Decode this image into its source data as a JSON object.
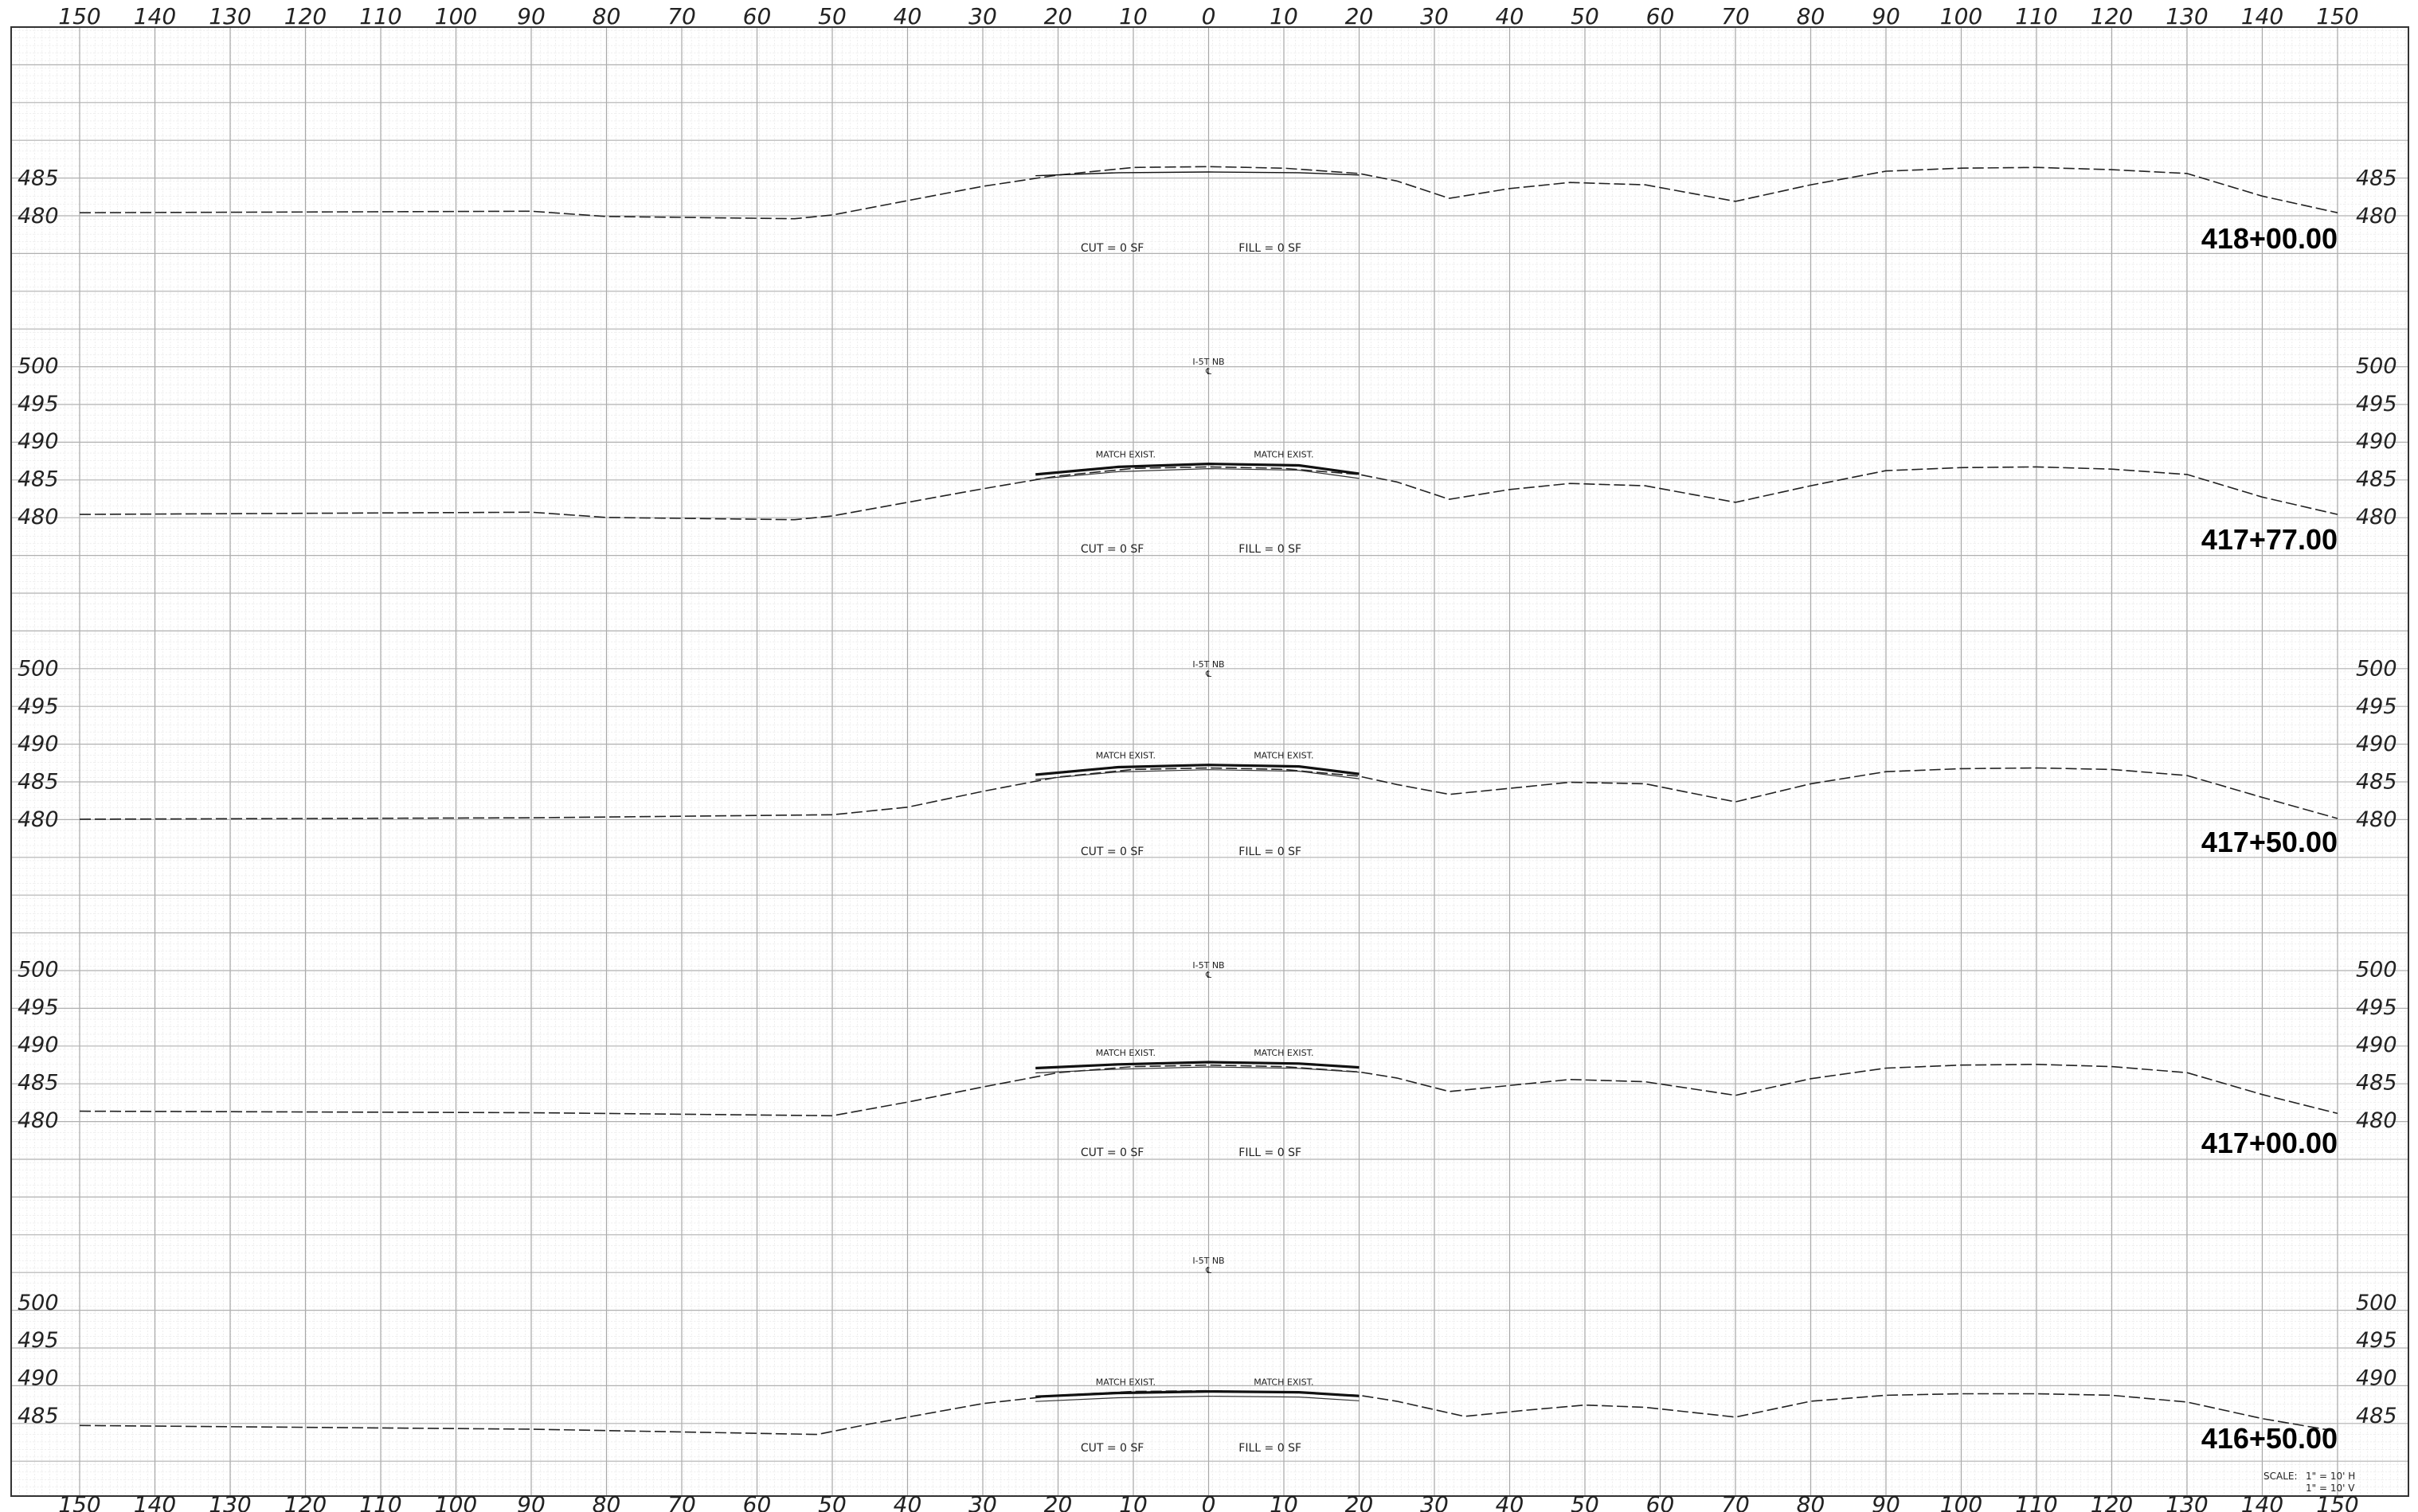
{
  "offset_ticks": [
    "150",
    "140",
    "130",
    "120",
    "110",
    "100",
    "90",
    "80",
    "70",
    "60",
    "50",
    "40",
    "30",
    "20",
    "10",
    "0",
    "10",
    "20",
    "30",
    "40",
    "50",
    "60",
    "70",
    "80",
    "90",
    "100",
    "110",
    "120",
    "130",
    "140",
    "150"
  ],
  "sections": [
    {
      "station": "418+00.00",
      "elevation_labels": [
        "485",
        "480"
      ],
      "cut_label": "CUT = 0 SF",
      "fill_label": "FILL = 0 SF",
      "centerline_label": "",
      "match_labels": [],
      "ground": [
        [
          -150,
          480.3
        ],
        [
          -90,
          480.5
        ],
        [
          -80,
          479.8
        ],
        [
          -55,
          479.5
        ],
        [
          -50,
          480
        ],
        [
          -30,
          483.8
        ],
        [
          -20,
          485.3
        ],
        [
          -10,
          486.3
        ],
        [
          0,
          486.4
        ],
        [
          10,
          486.2
        ],
        [
          20,
          485.5
        ],
        [
          25,
          484.5
        ],
        [
          32,
          482.2
        ],
        [
          40,
          483.5
        ],
        [
          48,
          484.3
        ],
        [
          58,
          484
        ],
        [
          70,
          481.8
        ],
        [
          80,
          484
        ],
        [
          90,
          485.8
        ],
        [
          100,
          486.2
        ],
        [
          110,
          486.3
        ],
        [
          120,
          486
        ],
        [
          130,
          485.5
        ],
        [
          140,
          482.5
        ],
        [
          150,
          480.3
        ]
      ],
      "proposed": [
        [
          -23,
          485.2
        ],
        [
          -12,
          485.6
        ],
        [
          0,
          485.7
        ],
        [
          12,
          485.6
        ],
        [
          20,
          485.3
        ]
      ]
    },
    {
      "station": "417+77.00",
      "elevation_labels": [
        "500",
        "495",
        "490",
        "485",
        "480"
      ],
      "cut_label": "CUT = 0 SF",
      "fill_label": "FILL = 0 SF",
      "centerline_label": "I-5T NB",
      "match_labels": [
        "MATCH EXIST.",
        "MATCH EXIST."
      ],
      "ground": [
        [
          -150,
          480.2
        ],
        [
          -90,
          480.5
        ],
        [
          -80,
          479.8
        ],
        [
          -55,
          479.5
        ],
        [
          -50,
          480
        ],
        [
          -30,
          483.6
        ],
        [
          -20,
          485.3
        ],
        [
          -10,
          486.3
        ],
        [
          0,
          486.5
        ],
        [
          10,
          486.3
        ],
        [
          20,
          485.5
        ],
        [
          25,
          484.5
        ],
        [
          32,
          482.2
        ],
        [
          40,
          483.5
        ],
        [
          48,
          484.3
        ],
        [
          58,
          484
        ],
        [
          70,
          481.8
        ],
        [
          80,
          484
        ],
        [
          90,
          486
        ],
        [
          100,
          486.4
        ],
        [
          110,
          486.5
        ],
        [
          120,
          486.2
        ],
        [
          130,
          485.5
        ],
        [
          140,
          482.5
        ],
        [
          150,
          480.2
        ]
      ],
      "proposed": [
        [
          -23,
          485.5
        ],
        [
          -12,
          486.5
        ],
        [
          0,
          486.9
        ],
        [
          12,
          486.7
        ],
        [
          20,
          485.6
        ]
      ]
    },
    {
      "station": "417+50.00",
      "elevation_labels": [
        "500",
        "495",
        "490",
        "485",
        "480"
      ],
      "cut_label": "CUT = 0 SF",
      "fill_label": "FILL = 0 SF",
      "centerline_label": "I-5T NB",
      "match_labels": [
        "MATCH EXIST.",
        "MATCH EXIST."
      ],
      "ground": [
        [
          -150,
          479.9
        ],
        [
          -90,
          480.1
        ],
        [
          -60,
          480.4
        ],
        [
          -50,
          480.5
        ],
        [
          -40,
          481.5
        ],
        [
          -30,
          483.6
        ],
        [
          -20,
          485.5
        ],
        [
          -10,
          486.5
        ],
        [
          0,
          486.7
        ],
        [
          10,
          486.5
        ],
        [
          20,
          485.6
        ],
        [
          25,
          484.5
        ],
        [
          32,
          483.2
        ],
        [
          40,
          484
        ],
        [
          48,
          484.8
        ],
        [
          58,
          484.6
        ],
        [
          70,
          482.2
        ],
        [
          80,
          484.6
        ],
        [
          90,
          486.2
        ],
        [
          100,
          486.6
        ],
        [
          110,
          486.7
        ],
        [
          120,
          486.5
        ],
        [
          130,
          485.7
        ],
        [
          140,
          482.8
        ],
        [
          150,
          480
        ]
      ],
      "proposed": [
        [
          -23,
          485.8
        ],
        [
          -12,
          486.8
        ],
        [
          0,
          487.1
        ],
        [
          12,
          486.9
        ],
        [
          20,
          485.9
        ]
      ]
    },
    {
      "station": "417+00.00",
      "elevation_labels": [
        "500",
        "495",
        "490",
        "485",
        "480"
      ],
      "cut_label": "CUT = 0 SF",
      "fill_label": "FILL = 0 SF",
      "centerline_label": "I-5T NB",
      "match_labels": [
        "MATCH EXIST.",
        "MATCH EXIST."
      ],
      "ground": [
        [
          -150,
          481.1
        ],
        [
          -90,
          480.9
        ],
        [
          -50,
          480.5
        ],
        [
          -40,
          482.3
        ],
        [
          -30,
          484.3
        ],
        [
          -20,
          486.2
        ],
        [
          -10,
          487
        ],
        [
          0,
          487.2
        ],
        [
          10,
          487
        ],
        [
          20,
          486.3
        ],
        [
          25,
          485.5
        ],
        [
          32,
          483.7
        ],
        [
          40,
          484.5
        ],
        [
          48,
          485.3
        ],
        [
          58,
          485
        ],
        [
          70,
          483.2
        ],
        [
          80,
          485.4
        ],
        [
          90,
          486.8
        ],
        [
          100,
          487.2
        ],
        [
          110,
          487.3
        ],
        [
          120,
          487
        ],
        [
          130,
          486.2
        ],
        [
          140,
          483.3
        ],
        [
          150,
          480.8
        ]
      ],
      "proposed": [
        [
          -23,
          486.8
        ],
        [
          -12,
          487.3
        ],
        [
          0,
          487.6
        ],
        [
          12,
          487.4
        ],
        [
          20,
          486.9
        ]
      ]
    },
    {
      "station": "416+50.00",
      "elevation_labels": [
        "500",
        "495",
        "490",
        "485"
      ],
      "cut_label": "CUT = 0 SF",
      "fill_label": "FILL = 0 SF",
      "centerline_label": "I-5T NB",
      "match_labels": [
        "MATCH EXIST.",
        "MATCH EXIST."
      ],
      "ground": [
        [
          -150,
          483.6
        ],
        [
          -90,
          483.1
        ],
        [
          -52,
          482.4
        ],
        [
          -45,
          483.8
        ],
        [
          -30,
          486.5
        ],
        [
          -20,
          487.6
        ],
        [
          -10,
          488.1
        ],
        [
          0,
          488.2
        ],
        [
          10,
          488
        ],
        [
          20,
          487.6
        ],
        [
          25,
          486.8
        ],
        [
          34,
          484.8
        ],
        [
          42,
          485.6
        ],
        [
          50,
          486.3
        ],
        [
          58,
          486
        ],
        [
          70,
          484.7
        ],
        [
          80,
          486.8
        ],
        [
          90,
          487.6
        ],
        [
          100,
          487.8
        ],
        [
          110,
          487.8
        ],
        [
          120,
          487.6
        ],
        [
          130,
          486.7
        ],
        [
          140,
          484.5
        ],
        [
          150,
          482.8
        ]
      ],
      "proposed": [
        [
          -23,
          487.4
        ],
        [
          -12,
          487.9
        ],
        [
          0,
          488.1
        ],
        [
          12,
          488
        ],
        [
          20,
          487.5
        ]
      ]
    }
  ],
  "scale_note": {
    "label": "SCALE:",
    "h": "1\" = 10' H",
    "v": "1\" = 10' V"
  },
  "colors": {
    "grid_major": "#9a9a9a",
    "grid_minor": "#d8d8d8",
    "line": "#111111"
  }
}
